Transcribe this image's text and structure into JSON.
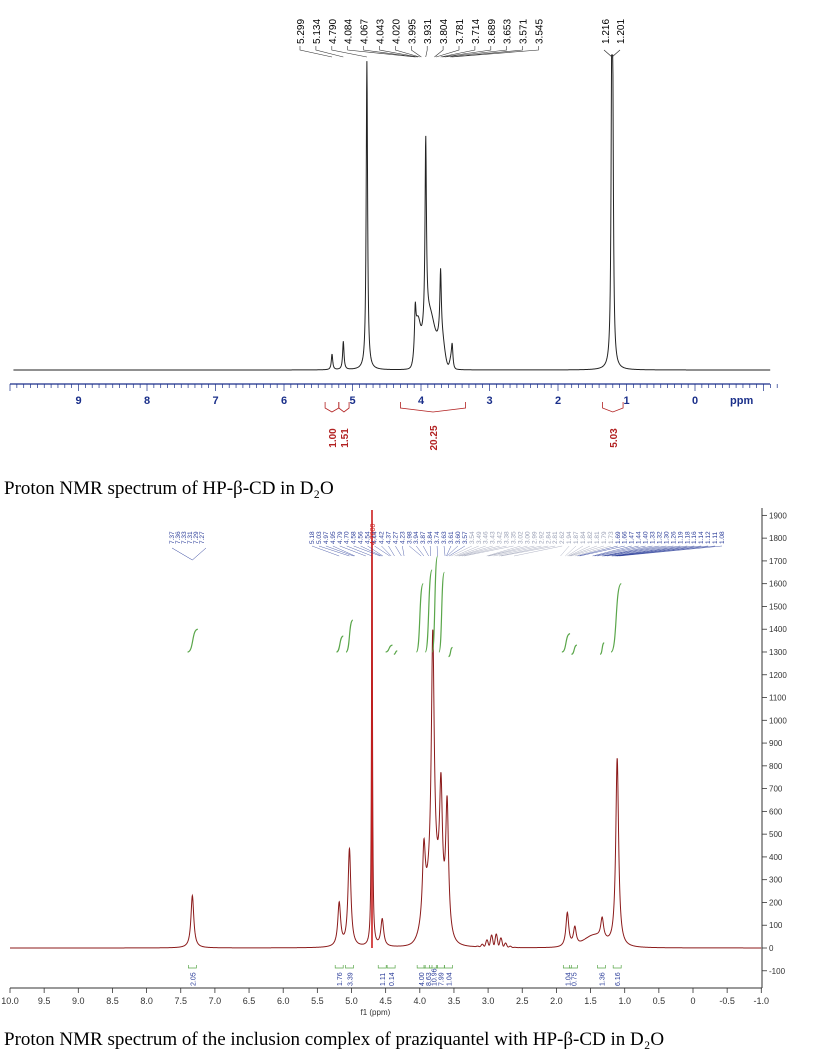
{
  "figure": {
    "caption_top": "Proton NMR spectrum of HP-β-CD in D₂O",
    "caption_bottom": "Proton NMR spectrum of the inclusion complex of praziquantel with HP-β-CD in D₂O"
  },
  "chart_data": [
    {
      "type": "line",
      "x_unit": "ppm",
      "xlim": [
        10,
        -1.3
      ],
      "x_ticks": [
        9,
        8,
        7,
        6,
        5,
        4,
        3,
        2,
        1,
        0
      ],
      "x_label": "ppm",
      "peak_labels": [
        "5.299",
        "5.134",
        "4.790",
        "4.084",
        "4.067",
        "4.043",
        "4.020",
        "3.995",
        "3.931",
        "3.804",
        "3.781",
        "3.714",
        "3.689",
        "3.653",
        "3.571",
        "3.545",
        "1.216",
        "1.201"
      ],
      "integrations": [
        {
          "value": "1.00",
          "from": 5.4,
          "to": 5.2
        },
        {
          "value": "1.51",
          "from": 5.2,
          "to": 5.05
        },
        {
          "value": "20.25",
          "from": 4.3,
          "to": 3.35
        },
        {
          "value": "5.03",
          "from": 1.35,
          "to": 1.05
        }
      ],
      "peaks": [
        {
          "x": 5.299,
          "height": 0.05
        },
        {
          "x": 5.134,
          "height": 0.09
        },
        {
          "x": 4.79,
          "height": 0.98
        },
        {
          "x": 4.084,
          "height": 0.12
        },
        {
          "x": 3.931,
          "height": 0.59
        },
        {
          "x": 3.714,
          "height": 0.2
        },
        {
          "x": 3.545,
          "height": 0.06
        },
        {
          "x": 1.216,
          "height": 0.78
        },
        {
          "x": 1.201,
          "height": 0.74
        }
      ]
    },
    {
      "type": "line",
      "x_unit": "ppm",
      "xlim": [
        10,
        -1
      ],
      "x_ticks": [
        "10.0",
        "9.5",
        "9.0",
        "8.5",
        "8.0",
        "7.5",
        "7.0",
        "6.5",
        "6.0",
        "5.5",
        "5.0",
        "4.5",
        "4.0",
        "3.5",
        "3.0",
        "2.5",
        "2.0",
        "1.5",
        "1.0",
        "0.5",
        "0",
        "-0.5",
        "-1.0"
      ],
      "x_label": "f1 (ppm)",
      "ylim": [
        -150,
        1900
      ],
      "y_ticks": [
        "1900",
        "1800",
        "1700",
        "1600",
        "1500",
        "1400",
        "1300",
        "1200",
        "1100",
        "1000",
        "900",
        "800",
        "700",
        "600",
        "500",
        "400",
        "300",
        "200",
        "100",
        "0",
        "-100"
      ],
      "peak_labels_group1": [
        "7.37",
        "7.36",
        "7.33",
        "7.31",
        "7.29",
        "7.27"
      ],
      "peak_labels_group2": [
        "5.18",
        "5.03",
        "4.97",
        "4.95",
        "4.79",
        "4.70",
        "4.58",
        "4.56",
        "4.54",
        "4.44",
        "4.42",
        "4.37",
        "4.27",
        "4.23",
        "3.98",
        "3.94",
        "3.87",
        "3.84",
        "3.74",
        "3.63",
        "3.61",
        "3.60",
        "3.57",
        "3.54",
        "3.49",
        "3.46",
        "3.43",
        "3.42",
        "3.38",
        "3.35",
        "3.02",
        "3.00",
        "2.99",
        "2.92",
        "2.84",
        "2.81",
        "2.62",
        "1.94",
        "1.87",
        "1.84",
        "1.82",
        "1.81",
        "1.79",
        "1.73",
        "1.69",
        "1.66",
        "1.47",
        "1.44",
        "1.40",
        "1.33",
        "1.32",
        "1.30",
        "1.26",
        "1.19",
        "1.18",
        "1.16",
        "1.14",
        "1.12",
        "1.11",
        "1.08"
      ],
      "solvent_label": "4.7000",
      "integrations": [
        "2.05",
        "1.76",
        "3.39",
        "1.11",
        "0.14",
        "4.00",
        "8.63",
        "10.96",
        "7.99",
        "1.04",
        "1.04",
        "0.75",
        "1.36",
        "6.16"
      ],
      "peaks": [
        {
          "x": 7.33,
          "y": 230
        },
        {
          "x": 5.18,
          "y": 190
        },
        {
          "x": 5.03,
          "y": 430
        },
        {
          "x": 4.7,
          "y": 1900
        },
        {
          "x": 4.55,
          "y": 120
        },
        {
          "x": 3.94,
          "y": 310
        },
        {
          "x": 3.81,
          "y": 1100
        },
        {
          "x": 3.69,
          "y": 520
        },
        {
          "x": 3.6,
          "y": 560
        },
        {
          "x": 1.84,
          "y": 150
        },
        {
          "x": 1.73,
          "y": 80
        },
        {
          "x": 1.33,
          "y": 90
        },
        {
          "x": 1.11,
          "y": 830
        }
      ]
    }
  ],
  "colors": {
    "spectrum_top": "#222222",
    "axis_top": "#1a2f8a",
    "integral_red": "#b22222",
    "spectrum_bottom": "#8b1a1a",
    "integral_green": "#5aa64a",
    "label_blue": "#2b3d99",
    "solvent_red": "#cc1f1f",
    "axis_bottom": "#333333"
  }
}
